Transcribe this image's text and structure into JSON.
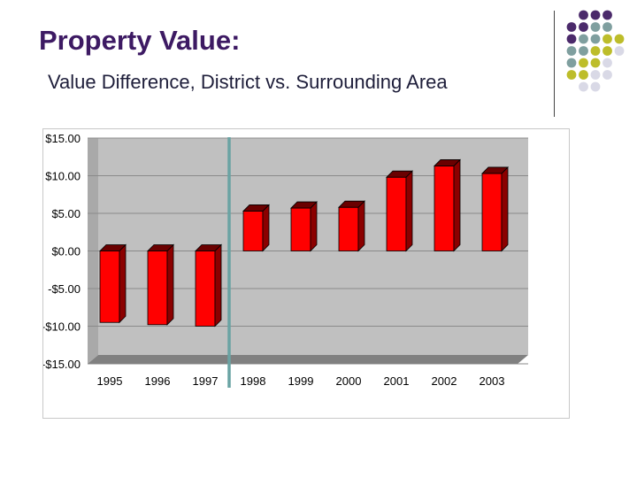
{
  "slide": {
    "title": "Property Value:",
    "subtitle": "Value Difference, District vs. Surrounding Area"
  },
  "colors": {
    "title": "#3d1a63",
    "bar_face": "#ff0000",
    "bar_side": "#8b0000",
    "bar_top": "#6a0000",
    "plot_bg": "#c0c0c0",
    "floor": "#808080",
    "divider": "#6aa3a3",
    "dot_purple": "#4b2a6b",
    "dot_teal": "#7f9f9f",
    "dot_olive": "#bdbd2a",
    "dot_lavender": "#d9d9e6"
  },
  "chart_data": {
    "type": "bar",
    "categories": [
      "1995",
      "1996",
      "1997",
      "1998",
      "1999",
      "2000",
      "2001",
      "2002",
      "2003"
    ],
    "values": [
      -9.5,
      -9.8,
      -10.0,
      5.3,
      5.7,
      5.8,
      9.8,
      11.3,
      10.3
    ],
    "yticks": [
      "$15.00",
      "$10.00",
      "$5.00",
      "$0.00",
      "-$5.00",
      "-$10.00",
      "-$15.00"
    ],
    "ylim": [
      -15,
      15
    ],
    "marker_after": "1997",
    "title": "",
    "xlabel": "",
    "ylabel": ""
  }
}
